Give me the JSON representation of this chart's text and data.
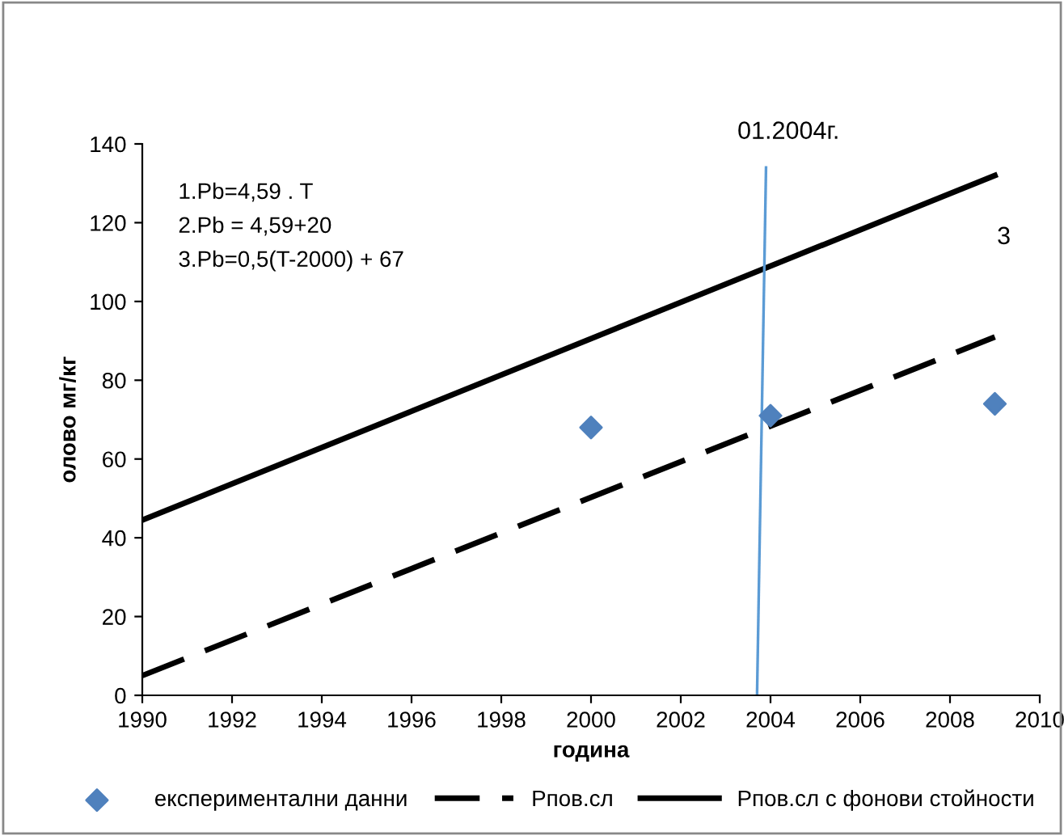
{
  "chart_data": {
    "type": "scatter",
    "xlabel": "година",
    "ylabel": "олово мг/кг",
    "xlim": [
      1990,
      2010
    ],
    "xticks": [
      1990,
      1992,
      1994,
      1996,
      1998,
      2000,
      2002,
      2004,
      2006,
      2008,
      2010
    ],
    "ylim": [
      0,
      140
    ],
    "yticks": [
      0,
      20,
      40,
      60,
      80,
      100,
      120,
      140
    ],
    "grid": false,
    "legend": "bottom",
    "series": [
      {
        "name": "експериментални данни",
        "marker": "diamond",
        "color": "#4f81bd",
        "x": [
          2000,
          2004,
          2009
        ],
        "values": [
          68,
          71,
          74
        ]
      },
      {
        "name": "Рпов.сл",
        "type": "line",
        "line_style": "dashed",
        "marker": "none",
        "color": "#000000",
        "x": [
          1990,
          2009
        ],
        "values": [
          5,
          91
        ]
      },
      {
        "name": "Рпов.сл с фонови стойности",
        "type": "line",
        "line_style": "solid",
        "marker": "none",
        "color": "#000000",
        "x": [
          1990,
          2009
        ],
        "values": [
          44.5,
          132
        ]
      },
      {
        "type": "line",
        "line_style": "solid",
        "marker": "none",
        "color": "#5b9bd5",
        "x": [
          2003.7,
          2003.9
        ],
        "values": [
          0,
          134
        ]
      }
    ],
    "annotations": [
      "1.Pb=4,59 . T\n2.Pb = 4,59+20\n3.Pb=0,5(T-2000) + 67",
      "01.2004г.",
      "3"
    ]
  }
}
